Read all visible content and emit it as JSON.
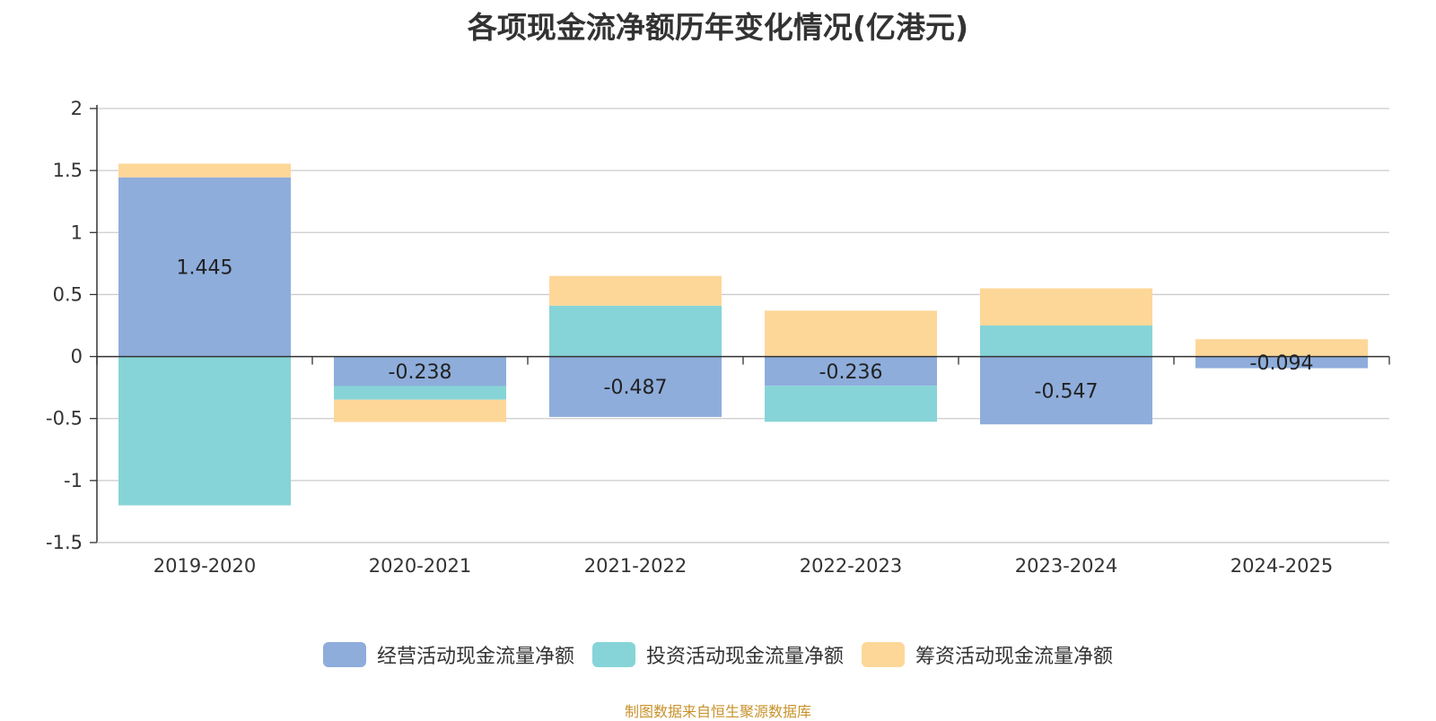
{
  "chart_data": {
    "type": "bar",
    "stacked": true,
    "title": "各项现金流净额历年变化情况(亿港元)",
    "categories": [
      "2019-2020",
      "2020-2021",
      "2021-2022",
      "2022-2023",
      "2023-2024",
      "2024-2025"
    ],
    "series": [
      {
        "name": "经营活动现金流量净额",
        "color": "#8eaddb",
        "values": [
          1.445,
          -0.238,
          -0.487,
          -0.236,
          -0.547,
          -0.094
        ]
      },
      {
        "name": "投资活动现金流量净额",
        "color": "#86d4d7",
        "values": [
          -1.2,
          -0.11,
          0.41,
          -0.29,
          0.25,
          0.0
        ]
      },
      {
        "name": "筹资活动现金流量净额",
        "color": "#fdd798",
        "values": [
          0.11,
          -0.18,
          0.24,
          0.37,
          0.3,
          0.14
        ]
      }
    ],
    "data_labels": [
      "1.445",
      "-0.238",
      "-0.487",
      "-0.236",
      "-0.547",
      "-0.094"
    ],
    "y_ticks": [
      "2",
      "1.5",
      "1",
      "0.5",
      "0",
      "-0.5",
      "-1",
      "-1.5"
    ],
    "ylim": [
      -1.5,
      2
    ],
    "xlabel": "",
    "ylabel": "",
    "legend_position": "bottom",
    "grid": true
  },
  "source_note": "制图数据来自恒生聚源数据库"
}
